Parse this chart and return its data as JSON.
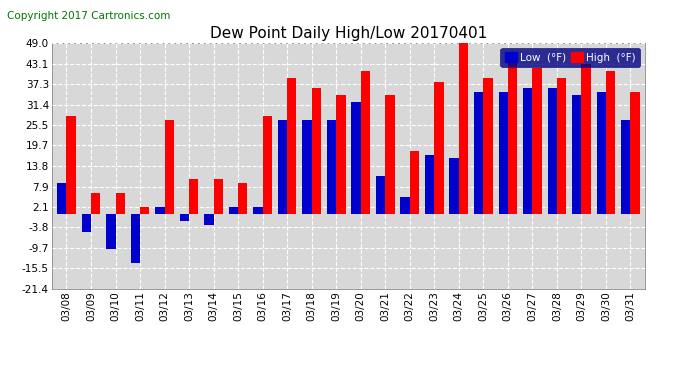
{
  "title": "Dew Point Daily High/Low 20170401",
  "copyright": "Copyright 2017 Cartronics.com",
  "legend_low": "Low  (°F)",
  "legend_high": "High  (°F)",
  "categories": [
    "03/08",
    "03/09",
    "03/10",
    "03/11",
    "03/12",
    "03/13",
    "03/14",
    "03/15",
    "03/16",
    "03/17",
    "03/18",
    "03/19",
    "03/20",
    "03/21",
    "03/22",
    "03/23",
    "03/24",
    "03/25",
    "03/26",
    "03/27",
    "03/28",
    "03/29",
    "03/30",
    "03/31"
  ],
  "high_values": [
    28.0,
    6.0,
    6.0,
    2.0,
    27.0,
    10.0,
    10.0,
    9.0,
    28.0,
    39.0,
    36.0,
    34.0,
    41.0,
    34.0,
    18.0,
    38.0,
    50.0,
    39.0,
    45.0,
    42.0,
    39.0,
    43.0,
    41.0,
    35.0
  ],
  "low_values": [
    9.0,
    -5.0,
    -10.0,
    -14.0,
    2.0,
    -2.0,
    -3.0,
    2.0,
    2.0,
    27.0,
    27.0,
    27.0,
    32.0,
    11.0,
    5.0,
    17.0,
    16.0,
    35.0,
    35.0,
    36.0,
    36.0,
    34.0,
    35.0,
    27.0
  ],
  "bar_color_high": "#ff0000",
  "bar_color_low": "#0000cc",
  "background_color": "#ffffff",
  "plot_bg_color": "#d8d8d8",
  "grid_color": "#ffffff",
  "ylim": [
    -21.4,
    49.0
  ],
  "yticks": [
    -21.4,
    -15.5,
    -9.7,
    -3.8,
    2.1,
    7.9,
    13.8,
    19.7,
    25.5,
    31.4,
    37.3,
    43.1,
    49.0
  ],
  "title_fontsize": 11,
  "copyright_fontsize": 7.5,
  "tick_fontsize": 7.5,
  "bar_width": 0.38
}
